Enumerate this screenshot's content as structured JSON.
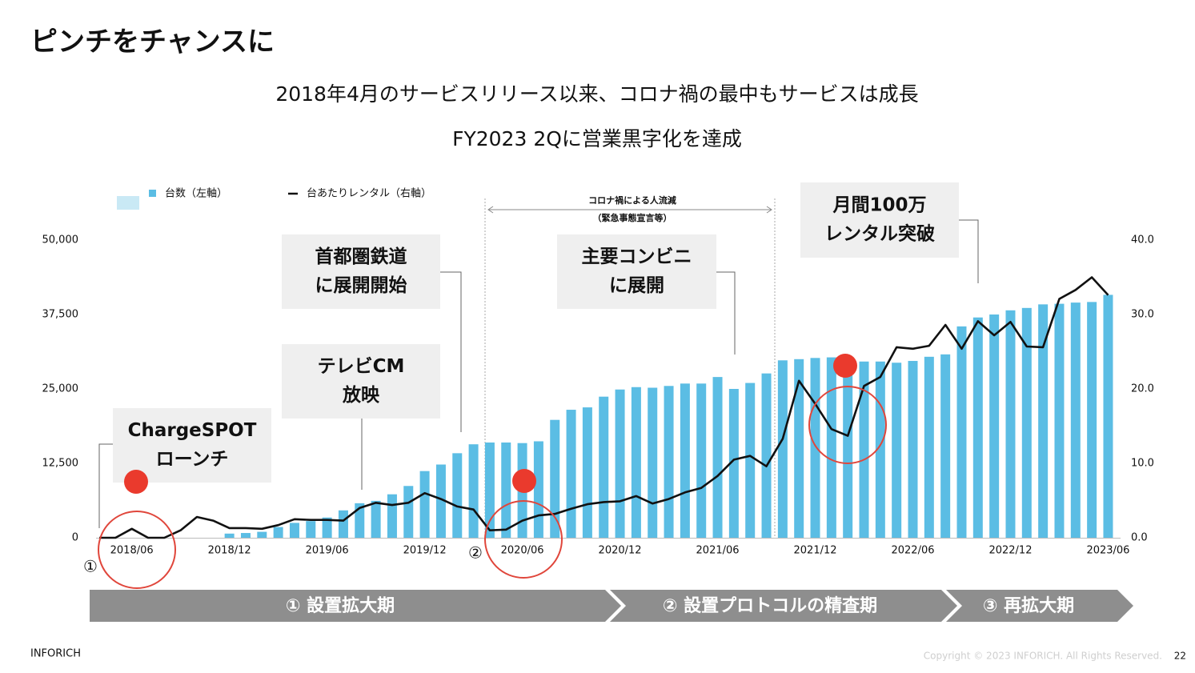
{
  "title": "ピンチをチャンスに",
  "subtitle": [
    "2018年4月のサービスリリース以来、コロナ禍の最中もサービスは成長",
    "FY2023 2Qに営業黒字化を達成"
  ],
  "chart_data": {
    "type": "bar+line",
    "categories": [
      null,
      null,
      "2018/06",
      null,
      null,
      null,
      null,
      null,
      "2018/12",
      null,
      null,
      null,
      null,
      null,
      "2019/06",
      null,
      null,
      null,
      null,
      null,
      "2019/12",
      null,
      null,
      null,
      null,
      null,
      "2020/06",
      null,
      null,
      null,
      null,
      null,
      "2020/12",
      null,
      null,
      null,
      null,
      null,
      "2021/06",
      null,
      null,
      null,
      null,
      null,
      "2021/12",
      null,
      null,
      null,
      null,
      null,
      "2022/06",
      null,
      null,
      null,
      null,
      null,
      "2022/12",
      null,
      null,
      null,
      null,
      null,
      "2023/06"
    ],
    "series": [
      {
        "name": "台数（左軸）",
        "type": "bar",
        "color": "#5bbde4",
        "axis": "y",
        "values": [
          null,
          null,
          null,
          null,
          null,
          null,
          null,
          null,
          700,
          800,
          1000,
          1800,
          2500,
          2800,
          3400,
          4600,
          5800,
          6200,
          7300,
          8700,
          11200,
          12300,
          14200,
          15700,
          16000,
          16000,
          15900,
          16200,
          19800,
          21500,
          21900,
          23700,
          24900,
          25300,
          25200,
          25500,
          25900,
          25900,
          27000,
          25000,
          26000,
          27600,
          29800,
          30000,
          30200,
          30300,
          30200,
          29600,
          29600,
          29400,
          29700,
          30400,
          30800,
          35500,
          37000,
          37500,
          38200,
          38600,
          39200,
          39300,
          39500,
          39600,
          40800
        ]
      },
      {
        "name": "台あたりレンタル（右軸）",
        "type": "line",
        "color": "#111111",
        "axis": "y2",
        "values": [
          0,
          0,
          1.2,
          0,
          0,
          1.0,
          2.8,
          2.3,
          1.3,
          1.3,
          1.2,
          1.7,
          2.5,
          2.4,
          2.4,
          2.3,
          4.0,
          4.7,
          4.4,
          4.7,
          6.0,
          5.2,
          4.2,
          3.8,
          1.0,
          1.1,
          2.3,
          3.0,
          3.2,
          3.9,
          4.5,
          4.8,
          4.9,
          5.6,
          4.6,
          5.2,
          6.1,
          6.7,
          8.3,
          10.5,
          11.0,
          9.6,
          13.3,
          21.1,
          18.0,
          14.6,
          13.7,
          20.4,
          21.6,
          25.6,
          25.4,
          25.8,
          28.6,
          25.4,
          29.1,
          27.2,
          29.0,
          25.7,
          25.6,
          32.1,
          33.3,
          35.0,
          32.6
        ]
      }
    ],
    "ylim": [
      0,
      50000
    ],
    "yticks": [
      0,
      {
        "value": 12500,
        "label": "12,500"
      },
      {
        "value": 25000,
        "label": "25,000"
      },
      {
        "value": 37500,
        "label": "37,500"
      },
      {
        "value": 50000,
        "label": "50,000"
      }
    ],
    "y2lim": [
      0,
      40
    ],
    "y2ticks": [
      {
        "value": 0,
        "label": "0.0"
      },
      {
        "value": 10,
        "label": "10.0"
      },
      {
        "value": 20,
        "label": "20.0"
      },
      {
        "value": 30,
        "label": "30.0"
      },
      {
        "value": 40,
        "label": "40.0"
      }
    ],
    "annotations": [
      {
        "lines": [
          "ChargeSPOT",
          "ローンチ"
        ]
      },
      {
        "lines": [
          "首都圏鉄道",
          "に展開開始"
        ]
      },
      {
        "lines": [
          "テレビCM",
          "放映"
        ]
      },
      {
        "lines": [
          "主要コンビニ",
          "に展開"
        ]
      },
      {
        "lines": [
          "月間100万",
          "レンタル突破"
        ]
      }
    ],
    "period": [
      "コロナ禍による人流減",
      "（緊急事態宣言等）"
    ],
    "markers": [
      "①",
      "②"
    ],
    "phases": [
      "①  設置拡大期",
      "②  設置プロトコルの精査期",
      "③  再拡大期"
    ]
  },
  "footer": {
    "company": "INFORICH",
    "copyright": "Copyright © 2023 INFORICH. All Rights Reserved.",
    "page": "22"
  }
}
